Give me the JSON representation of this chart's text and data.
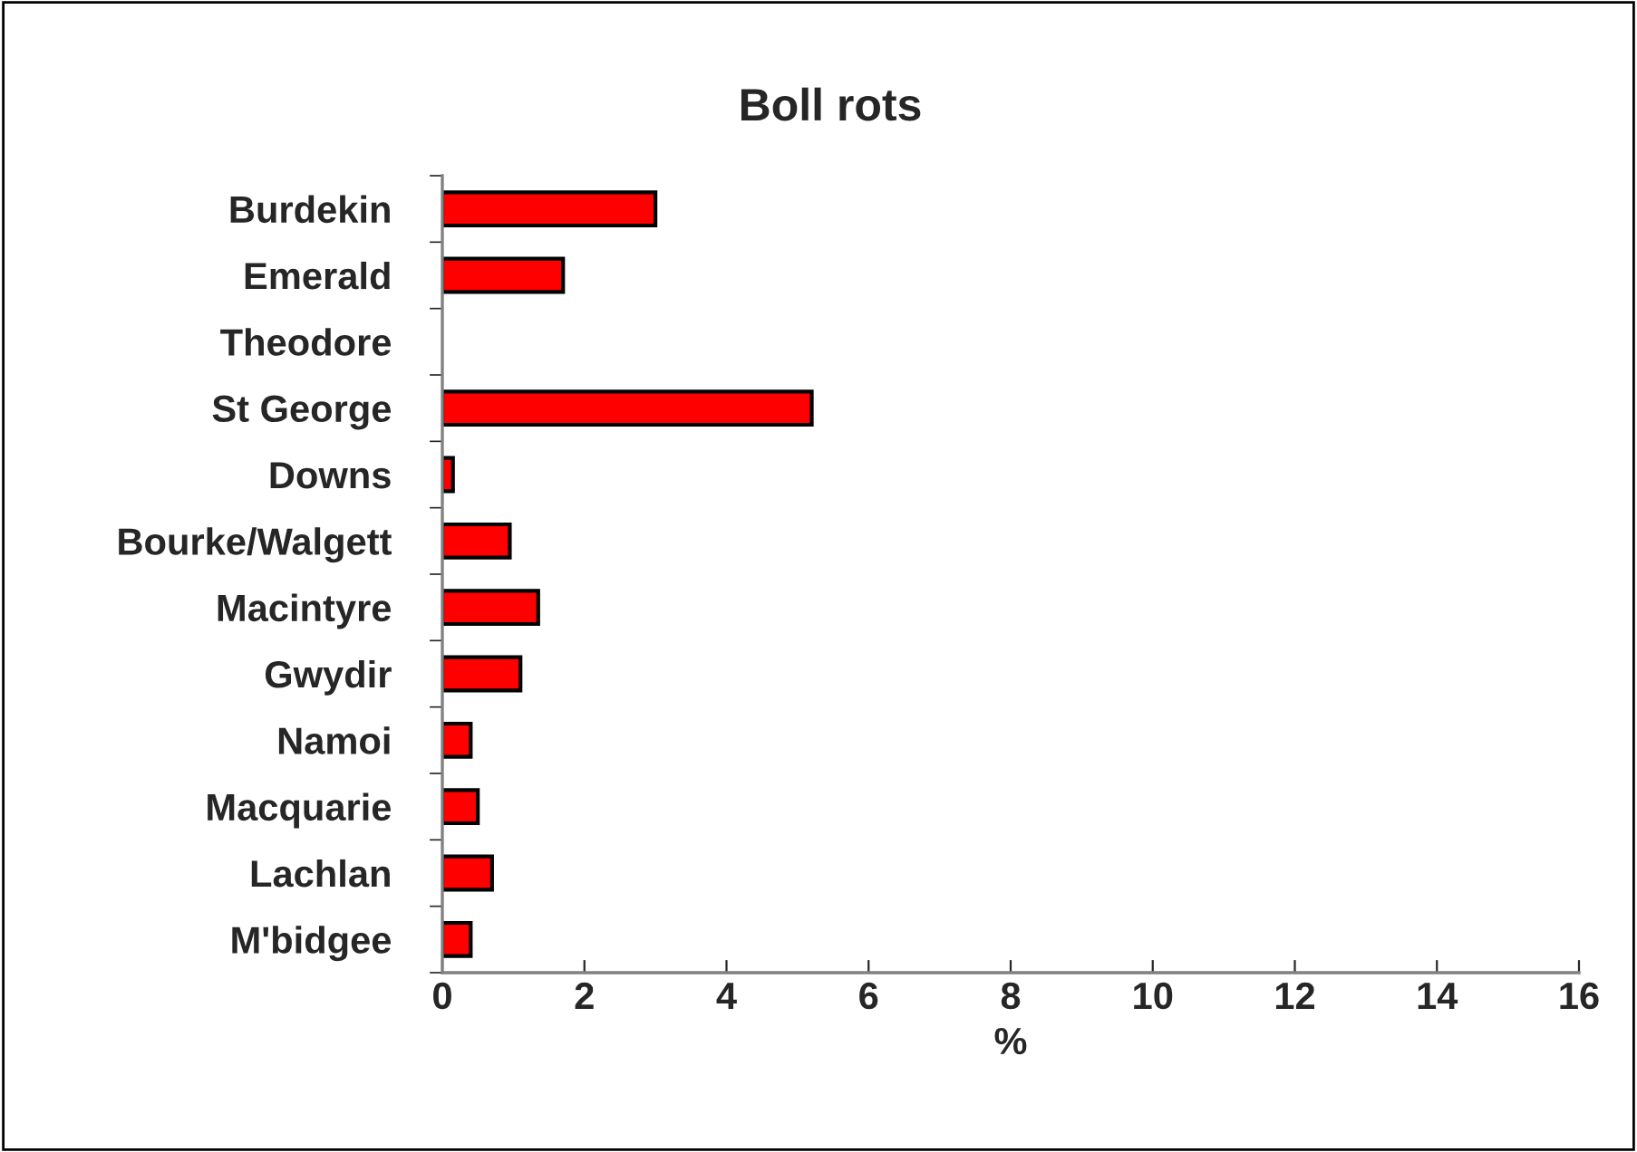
{
  "chart_data": {
    "type": "bar",
    "orientation": "horizontal",
    "title": "Boll rots",
    "xlabel": "%",
    "categories": [
      "Burdekin",
      "Emerald",
      "Theodore",
      "St George",
      "Downs",
      "Bourke/Walgett",
      "Macintyre",
      "Gwydir",
      "Namoi",
      "Macquarie",
      "Lachlan",
      "M'bidgee"
    ],
    "values": [
      3.0,
      1.7,
      null,
      5.2,
      0.15,
      0.95,
      1.35,
      1.1,
      0.4,
      0.5,
      0.7,
      0.4
    ],
    "color": "#ff0000",
    "xlim": [
      0,
      16
    ],
    "xticks": [
      0,
      2,
      4,
      6,
      8,
      10,
      12,
      14,
      16
    ],
    "grid": false,
    "legend": false
  }
}
